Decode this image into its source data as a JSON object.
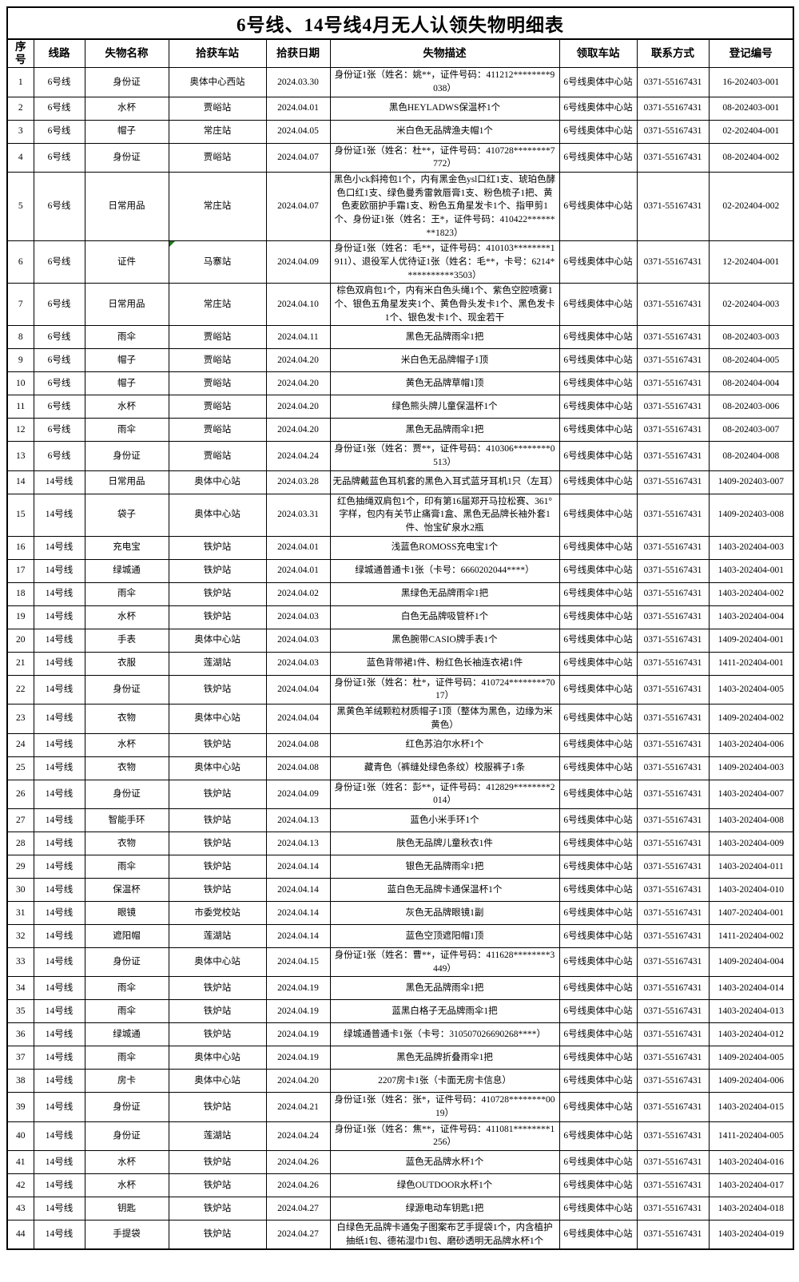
{
  "title": "6号线、14号线4月无人认领失物明细表",
  "colors": {
    "background": "#ffffff",
    "text": "#000000",
    "border": "#000000",
    "comment_marker_green": "#1f7a1f"
  },
  "table": {
    "columns": [
      "序号",
      "线路",
      "失物名称",
      "拾获车站",
      "拾获日期",
      "失物描述",
      "领取车站",
      "联系方式",
      "登记编号"
    ],
    "column_keys": [
      "index",
      "line",
      "item-name",
      "station-found",
      "date-found",
      "description",
      "pickup-station",
      "contact",
      "registration-no"
    ],
    "comment_marker": {
      "row_index": 5,
      "col_index": 3,
      "icon": "comment-marker-icon",
      "color": "#1f7a1f"
    },
    "rows": [
      [
        "1",
        "6号线",
        "身份证",
        "奥体中心西站",
        "2024.03.30",
        "身份证1张（姓名：姚**，证件号码：411212********9038）",
        "6号线奥体中心站",
        "0371-55167431",
        "16-202403-001"
      ],
      [
        "2",
        "6号线",
        "水杯",
        "贾峪站",
        "2024.04.01",
        "黑色HEYLADWS保温杯1个",
        "6号线奥体中心站",
        "0371-55167431",
        "08-202403-001"
      ],
      [
        "3",
        "6号线",
        "帽子",
        "常庄站",
        "2024.04.05",
        "米白色无品牌渔夫帽1个",
        "6号线奥体中心站",
        "0371-55167431",
        "02-202404-001"
      ],
      [
        "4",
        "6号线",
        "身份证",
        "贾峪站",
        "2024.04.07",
        "身份证1张（姓名：杜**，证件号码：410728********7772）",
        "6号线奥体中心站",
        "0371-55167431",
        "08-202404-002"
      ],
      [
        "5",
        "6号线",
        "日常用品",
        "常庄站",
        "2024.04.07",
        "黑色小ck斜挎包1个，内有黑金色ysl口红1支、琥珀色酵色口红1支、绿色曼秀雷敦唇膏1支、粉色梳子1把、黄色麦欧丽护手霜1支、粉色五角星发卡1个、指甲剪1个、身份证1张（姓名：王*，证件号码：410422********1823）",
        "6号线奥体中心站",
        "0371-55167431",
        "02-202404-002"
      ],
      [
        "6",
        "6号线",
        "证件",
        "马寨站",
        "2024.04.09",
        "身份证1张（姓名：毛**，证件号码：410103********1911）、退役军人优待证1张（姓名：毛**，卡号：6214***********3503）",
        "6号线奥体中心站",
        "0371-55167431",
        "12-202404-001"
      ],
      [
        "7",
        "6号线",
        "日常用品",
        "常庄站",
        "2024.04.10",
        "棕色双肩包1个，内有米白色头绳1个、紫色空腔喷雾1个、银色五角星发夹1个、黄色骨头发卡1个、黑色发卡1个、银色发卡1个、现金若干",
        "6号线奥体中心站",
        "0371-55167431",
        "02-202404-003"
      ],
      [
        "8",
        "6号线",
        "雨伞",
        "贾峪站",
        "2024.04.11",
        "黑色无品牌雨伞1把",
        "6号线奥体中心站",
        "0371-55167431",
        "08-202403-003"
      ],
      [
        "9",
        "6号线",
        "帽子",
        "贾峪站",
        "2024.04.20",
        "米白色无品牌帽子1顶",
        "6号线奥体中心站",
        "0371-55167431",
        "08-202404-005"
      ],
      [
        "10",
        "6号线",
        "帽子",
        "贾峪站",
        "2024.04.20",
        "黄色无品牌草帽1顶",
        "6号线奥体中心站",
        "0371-55167431",
        "08-202404-004"
      ],
      [
        "11",
        "6号线",
        "水杯",
        "贾峪站",
        "2024.04.20",
        "绿色熊头牌儿童保温杯1个",
        "6号线奥体中心站",
        "0371-55167431",
        "08-202403-006"
      ],
      [
        "12",
        "6号线",
        "雨伞",
        "贾峪站",
        "2024.04.20",
        "黑色无品牌雨伞1把",
        "6号线奥体中心站",
        "0371-55167431",
        "08-202403-007"
      ],
      [
        "13",
        "6号线",
        "身份证",
        "贾峪站",
        "2024.04.24",
        "身份证1张（姓名：贾**，证件号码：410306********0513）",
        "6号线奥体中心站",
        "0371-55167431",
        "08-202404-008"
      ],
      [
        "14",
        "14号线",
        "日常用品",
        "奥体中心站",
        "2024.03.28",
        "无品牌戴蓝色耳机套的黑色入耳式蓝牙耳机1只（左耳）",
        "6号线奥体中心站",
        "0371-55167431",
        "1409-202403-007"
      ],
      [
        "15",
        "14号线",
        "袋子",
        "奥体中心站",
        "2024.03.31",
        "红色抽绳双肩包1个，印有第16届郑开马拉松赛、361°字样，包内有关节止痛膏1盒、黑色无品牌长袖外套1件、怡宝矿泉水2瓶",
        "6号线奥体中心站",
        "0371-55167431",
        "1409-202403-008"
      ],
      [
        "16",
        "14号线",
        "充电宝",
        "铁炉站",
        "2024.04.01",
        "浅蓝色ROMOSS充电宝1个",
        "6号线奥体中心站",
        "0371-55167431",
        "1403-202404-003"
      ],
      [
        "17",
        "14号线",
        "绿城通",
        "铁炉站",
        "2024.04.01",
        "绿城通普通卡1张（卡号：6660202044****）",
        "6号线奥体中心站",
        "0371-55167431",
        "1403-202404-001"
      ],
      [
        "18",
        "14号线",
        "雨伞",
        "铁炉站",
        "2024.04.02",
        "黑绿色无品牌雨伞1把",
        "6号线奥体中心站",
        "0371-55167431",
        "1403-202404-002"
      ],
      [
        "19",
        "14号线",
        "水杯",
        "铁炉站",
        "2024.04.03",
        "白色无品牌吸管杯1个",
        "6号线奥体中心站",
        "0371-55167431",
        "1403-202404-004"
      ],
      [
        "20",
        "14号线",
        "手表",
        "奥体中心站",
        "2024.04.03",
        "黑色腕带CASIO牌手表1个",
        "6号线奥体中心站",
        "0371-55167431",
        "1409-202404-001"
      ],
      [
        "21",
        "14号线",
        "衣服",
        "莲湖站",
        "2024.04.03",
        "蓝色背带裙1件、粉红色长袖连衣裙1件",
        "6号线奥体中心站",
        "0371-55167431",
        "1411-202404-001"
      ],
      [
        "22",
        "14号线",
        "身份证",
        "铁炉站",
        "2024.04.04",
        "身份证1张（姓名：杜*，证件号码：410724********7017）",
        "6号线奥体中心站",
        "0371-55167431",
        "1403-202404-005"
      ],
      [
        "23",
        "14号线",
        "衣物",
        "奥体中心站",
        "2024.04.04",
        "黑黄色羊绒颗粒材质帽子1顶（整体为黑色，边缘为米黄色）",
        "6号线奥体中心站",
        "0371-55167431",
        "1409-202404-002"
      ],
      [
        "24",
        "14号线",
        "水杯",
        "铁炉站",
        "2024.04.08",
        "红色苏泊尔水杯1个",
        "6号线奥体中心站",
        "0371-55167431",
        "1403-202404-006"
      ],
      [
        "25",
        "14号线",
        "衣物",
        "奥体中心站",
        "2024.04.08",
        "藏青色（裤缝处绿色条纹）校服裤子1条",
        "6号线奥体中心站",
        "0371-55167431",
        "1409-202404-003"
      ],
      [
        "26",
        "14号线",
        "身份证",
        "铁炉站",
        "2024.04.09",
        "身份证1张（姓名：彭**，证件号码：412829********2014）",
        "6号线奥体中心站",
        "0371-55167431",
        "1403-202404-007"
      ],
      [
        "27",
        "14号线",
        "智能手环",
        "铁炉站",
        "2024.04.13",
        "蓝色小米手环1个",
        "6号线奥体中心站",
        "0371-55167431",
        "1403-202404-008"
      ],
      [
        "28",
        "14号线",
        "衣物",
        "铁炉站",
        "2024.04.13",
        "肤色无品牌儿童秋衣1件",
        "6号线奥体中心站",
        "0371-55167431",
        "1403-202404-009"
      ],
      [
        "29",
        "14号线",
        "雨伞",
        "铁炉站",
        "2024.04.14",
        "银色无品牌雨伞1把",
        "6号线奥体中心站",
        "0371-55167431",
        "1403-202404-011"
      ],
      [
        "30",
        "14号线",
        "保温杯",
        "铁炉站",
        "2024.04.14",
        "蓝白色无品牌卡通保温杯1个",
        "6号线奥体中心站",
        "0371-55167431",
        "1403-202404-010"
      ],
      [
        "31",
        "14号线",
        "眼镜",
        "市委党校站",
        "2024.04.14",
        "灰色无品牌眼镜1副",
        "6号线奥体中心站",
        "0371-55167431",
        "1407-202404-001"
      ],
      [
        "32",
        "14号线",
        "遮阳帽",
        "莲湖站",
        "2024.04.14",
        "蓝色空顶遮阳帽1顶",
        "6号线奥体中心站",
        "0371-55167431",
        "1411-202404-002"
      ],
      [
        "33",
        "14号线",
        "身份证",
        "奥体中心站",
        "2024.04.15",
        "身份证1张（姓名：曹**，证件号码：411628********3449）",
        "6号线奥体中心站",
        "0371-55167431",
        "1409-202404-004"
      ],
      [
        "34",
        "14号线",
        "雨伞",
        "铁炉站",
        "2024.04.19",
        "黑色无品牌雨伞1把",
        "6号线奥体中心站",
        "0371-55167431",
        "1403-202404-014"
      ],
      [
        "35",
        "14号线",
        "雨伞",
        "铁炉站",
        "2024.04.19",
        "蓝黑白格子无品牌雨伞1把",
        "6号线奥体中心站",
        "0371-55167431",
        "1403-202404-013"
      ],
      [
        "36",
        "14号线",
        "绿城通",
        "铁炉站",
        "2024.04.19",
        "绿城通普通卡1张（卡号：310507026690268****）",
        "6号线奥体中心站",
        "0371-55167431",
        "1403-202404-012"
      ],
      [
        "37",
        "14号线",
        "雨伞",
        "奥体中心站",
        "2024.04.19",
        "黑色无品牌折叠雨伞1把",
        "6号线奥体中心站",
        "0371-55167431",
        "1409-202404-005"
      ],
      [
        "38",
        "14号线",
        "房卡",
        "奥体中心站",
        "2024.04.20",
        "2207房卡1张（卡面无房卡信息）",
        "6号线奥体中心站",
        "0371-55167431",
        "1409-202404-006"
      ],
      [
        "39",
        "14号线",
        "身份证",
        "铁炉站",
        "2024.04.21",
        "身份证1张（姓名：张*，证件号码：410728********0019）",
        "6号线奥体中心站",
        "0371-55167431",
        "1403-202404-015"
      ],
      [
        "40",
        "14号线",
        "身份证",
        "莲湖站",
        "2024.04.24",
        "身份证1张（姓名：焦**，证件号码：411081********1256）",
        "6号线奥体中心站",
        "0371-55167431",
        "1411-202404-005"
      ],
      [
        "41",
        "14号线",
        "水杯",
        "铁炉站",
        "2024.04.26",
        "蓝色无品牌水杯1个",
        "6号线奥体中心站",
        "0371-55167431",
        "1403-202404-016"
      ],
      [
        "42",
        "14号线",
        "水杯",
        "铁炉站",
        "2024.04.26",
        "绿色OUTDOOR水杯1个",
        "6号线奥体中心站",
        "0371-55167431",
        "1403-202404-017"
      ],
      [
        "43",
        "14号线",
        "钥匙",
        "铁炉站",
        "2024.04.27",
        "绿源电动车钥匙1把",
        "6号线奥体中心站",
        "0371-55167431",
        "1403-202404-018"
      ],
      [
        "44",
        "14号线",
        "手提袋",
        "铁炉站",
        "2024.04.27",
        "白绿色无品牌卡通兔子图案布艺手提袋1个，内含植护抽纸1包、德祐湿巾1包、磨砂透明无品牌水杯1个",
        "6号线奥体中心站",
        "0371-55167431",
        "1403-202404-019"
      ]
    ]
  }
}
